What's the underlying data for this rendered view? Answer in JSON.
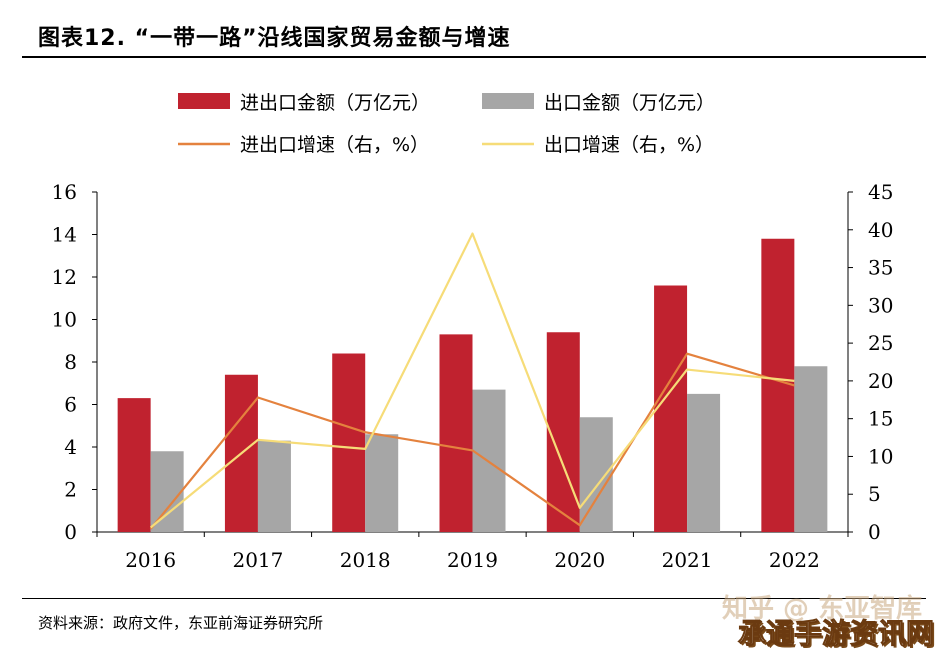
{
  "figure_title": "图表12. “一带一路”沿线国家贸易金额与增速",
  "source_note": "资料来源：政府文件，东亚前海证券研究所",
  "watermark": "知乎 @ 东亚智库",
  "watermark_site": "承通手游资讯网",
  "chart_data": {
    "type": "bar",
    "categories": [
      "2016",
      "2017",
      "2018",
      "2019",
      "2020",
      "2021",
      "2022"
    ],
    "bar_series": [
      {
        "name": "进出口金额（万亿元）",
        "axis": "left",
        "color": "#c0222f",
        "values": [
          6.3,
          7.4,
          8.4,
          9.3,
          9.4,
          11.6,
          13.8
        ]
      },
      {
        "name": "出口金额（万亿元）",
        "axis": "left",
        "color": "#a6a6a6",
        "values": [
          3.8,
          4.3,
          4.6,
          6.7,
          5.4,
          6.5,
          7.8
        ]
      }
    ],
    "line_series": [
      {
        "name": "进出口增速（右，%）",
        "axis": "right",
        "color": "#e4823e",
        "values": [
          0.4,
          17.8,
          13.2,
          10.8,
          0.9,
          23.6,
          19.4
        ]
      },
      {
        "name": "出口增速（右，%）",
        "axis": "right",
        "color": "#f6dc78",
        "values": [
          0.6,
          12.2,
          11.0,
          39.5,
          3.2,
          21.5,
          20.0
        ]
      }
    ],
    "y_left": {
      "min": 0,
      "max": 16,
      "ticks": [
        "0",
        "2",
        "4",
        "6",
        "8",
        "10",
        "12",
        "14",
        "16"
      ]
    },
    "y_right": {
      "min": 0,
      "max": 45,
      "ticks": [
        "0",
        "5",
        "10",
        "15",
        "20",
        "25",
        "30",
        "35",
        "40",
        "45"
      ]
    },
    "grid": false,
    "legend_position": "top"
  }
}
